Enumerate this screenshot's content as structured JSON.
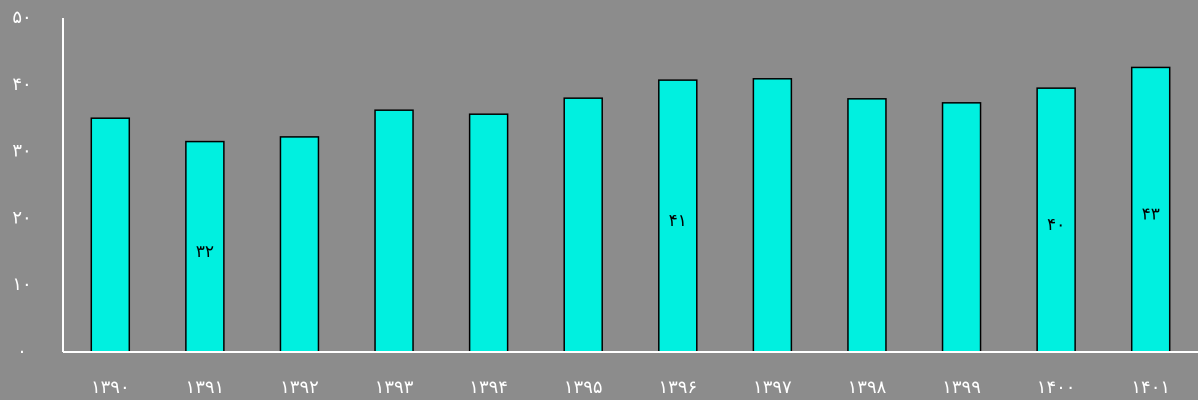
{
  "chart_data": {
    "type": "bar",
    "categories": [
      "۱۳۹۰",
      "۱۳۹۱",
      "۱۳۹۲",
      "۱۳۹۳",
      "۱۳۹۴",
      "۱۳۹۵",
      "۱۳۹۶",
      "۱۳۹۷",
      "۱۳۹۸",
      "۱۳۹۹",
      "۱۴۰۰",
      "۱۴۰۱"
    ],
    "values": [
      35.0,
      31.5,
      32.2,
      36.2,
      35.6,
      38.0,
      40.7,
      40.9,
      37.9,
      37.3,
      39.5,
      42.6
    ],
    "value_labels": [
      null,
      "۳۲",
      null,
      null,
      null,
      null,
      "۴۱",
      null,
      null,
      null,
      "۴۰",
      "۴۳"
    ],
    "color": "#00f0e0",
    "ylim": [
      0,
      50
    ],
    "yticks": [
      {
        "value": 0,
        "label": "۰"
      },
      {
        "value": 10,
        "label": "۱۰"
      },
      {
        "value": 20,
        "label": "۲۰"
      },
      {
        "value": 30,
        "label": "۳۰"
      },
      {
        "value": 40,
        "label": "۴۰"
      },
      {
        "value": 50,
        "label": "۵۰"
      }
    ],
    "grid": false
  }
}
